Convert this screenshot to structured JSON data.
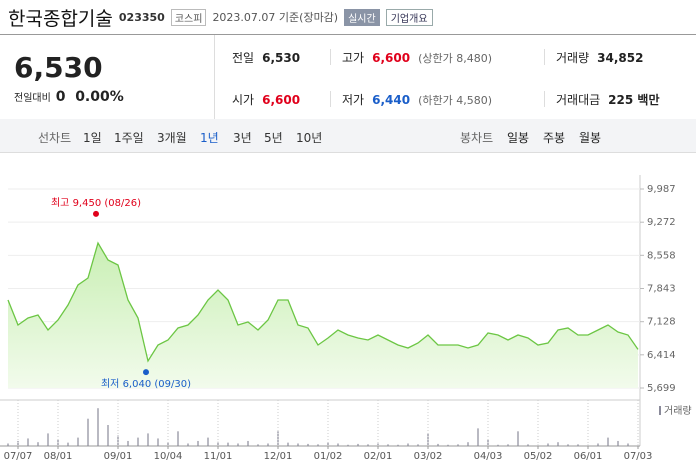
{
  "header": {
    "name": "한국종합기술",
    "code": "023350",
    "market": "코스피",
    "date": "2023.07.07 기준(장마감)",
    "badge": "실시간",
    "button": "기업개요"
  },
  "quote": {
    "price": "6,530",
    "change_label": "전일대비",
    "change": "0",
    "change_pct": "0.00%"
  },
  "summary": {
    "rows": [
      [
        [
          "전일",
          "6,530",
          ""
        ],
        [
          "고가",
          "6,600",
          "(상한가 8,480)"
        ],
        [
          "거래량",
          "34,852",
          ""
        ]
      ],
      [
        [
          "시가",
          "6,600",
          ""
        ],
        [
          "저가",
          "6,440",
          "(하한가 4,580)"
        ],
        [
          "거래대금",
          "225 백만",
          ""
        ]
      ]
    ]
  },
  "tabs": {
    "line_label": "선차트",
    "line_periods": [
      "1일",
      "1주일",
      "3개월",
      "1년",
      "3년",
      "5년",
      "10년"
    ],
    "selected": "1년",
    "candle_label": "봉차트",
    "candle_periods": [
      "일봉",
      "주봉",
      "월봉"
    ]
  },
  "chart_data": [
    {
      "type": "line",
      "color": "#6cc644",
      "categories": [
        null,
        "07/07",
        null,
        null,
        null,
        "08/01",
        null,
        null,
        null,
        null,
        null,
        "09/01",
        null,
        null,
        null,
        null,
        "10/04",
        null,
        null,
        null,
        null,
        "11/01",
        null,
        null,
        null,
        null,
        null,
        "12/01",
        null,
        null,
        null,
        null,
        "01/02",
        null,
        null,
        null,
        null,
        "02/01",
        null,
        null,
        null,
        null,
        "03/02",
        null,
        null,
        null,
        null,
        null,
        "04/03",
        null,
        null,
        null,
        null,
        "05/02",
        null,
        null,
        null,
        null,
        "06/01",
        null,
        null,
        null,
        null,
        "07/03"
      ],
      "values": [
        7595,
        7056,
        7207,
        7272,
        6948,
        7164,
        7487,
        7918,
        8069,
        8823,
        8457,
        8349,
        7595,
        7207,
        6280,
        6625,
        6733,
        6992,
        7056,
        7272,
        7595,
        7810,
        7595,
        7056,
        7121,
        6948,
        7164,
        7595,
        7595,
        7056,
        6992,
        6625,
        6776,
        6948,
        6840,
        6776,
        6733,
        6840,
        6733,
        6625,
        6560,
        6668,
        6840,
        6625,
        6625,
        6625,
        6560,
        6625,
        6884,
        6840,
        6733,
        6840,
        6776,
        6625,
        6668,
        6948,
        6992,
        6840,
        6840,
        6948,
        7056,
        6905,
        6840,
        6530
      ],
      "ylim": [
        5699,
        9987
      ],
      "yticks": [
        {
          "value": 5699,
          "label": "5,699"
        },
        {
          "value": 6414,
          "label": "6,414"
        },
        {
          "value": 7128,
          "label": "7,128"
        },
        {
          "value": 7843,
          "label": "7,843"
        },
        {
          "value": 8558,
          "label": "8,558"
        },
        {
          "value": 9272,
          "label": "9,272"
        },
        {
          "value": 9987,
          "label": "9,987"
        }
      ],
      "annotations": [
        {
          "text": "최고 9,450 (08/26)",
          "value": 9450,
          "color": "#e0001b"
        },
        {
          "text": "최저 6,040 (09/30)",
          "value": 6040,
          "color": "#1a5ec9"
        }
      ]
    },
    {
      "type": "bar",
      "name": "거래량",
      "color": "#8a8a9a",
      "ylim": [
        0,
        1000000
      ],
      "values": [
        60000,
        120000,
        180000,
        90000,
        300000,
        150000,
        80000,
        200000,
        650000,
        900000,
        500000,
        250000,
        120000,
        200000,
        300000,
        180000,
        90000,
        350000,
        60000,
        120000,
        200000,
        100000,
        80000,
        60000,
        120000,
        40000,
        60000,
        350000,
        80000,
        60000,
        50000,
        40000,
        90000,
        60000,
        30000,
        50000,
        40000,
        60000,
        40000,
        30000,
        60000,
        40000,
        300000,
        50000,
        30000,
        40000,
        90000,
        420000,
        150000,
        30000,
        40000,
        350000,
        40000,
        30000,
        60000,
        90000,
        40000,
        40000,
        30000,
        60000,
        200000,
        120000,
        60000,
        30000
      ]
    }
  ]
}
